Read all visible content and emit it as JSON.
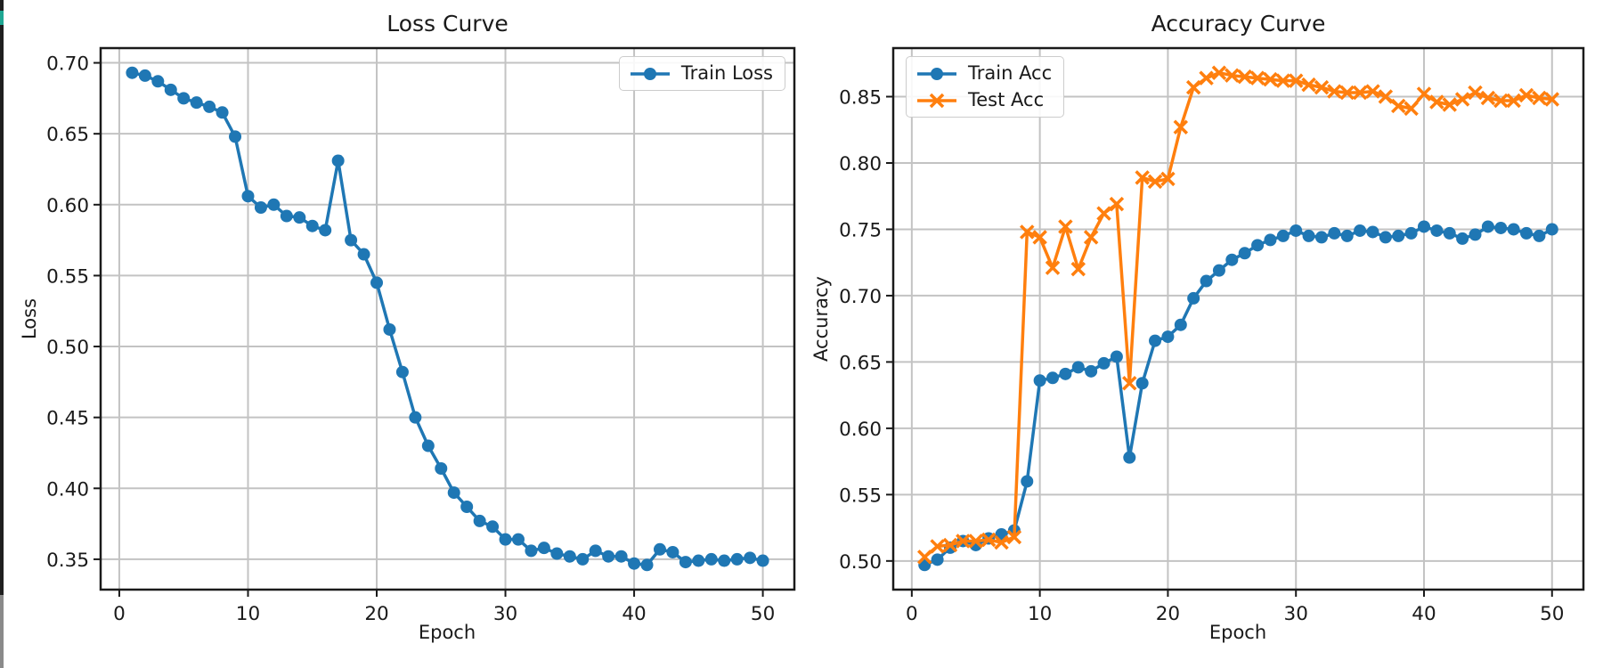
{
  "figure": {
    "background": "#ffffff",
    "spine_color": "#1a1a1a",
    "grid_color": "#c3c3c3",
    "tick_label_color": "#1a1a1a"
  },
  "chart_data": [
    {
      "id": "loss",
      "type": "line",
      "title": "Loss Curve",
      "xlabel": "Epoch",
      "ylabel": "Loss",
      "grid": true,
      "legend_position": "top-right",
      "xlim": [
        -1.45,
        52.45
      ],
      "ylim": [
        0.3286,
        0.7104
      ],
      "xticks": [
        0,
        10,
        20,
        30,
        40,
        50
      ],
      "xtick_labels": [
        "0",
        "10",
        "20",
        "30",
        "40",
        "50"
      ],
      "yticks": [
        0.35,
        0.4,
        0.45,
        0.5,
        0.55,
        0.6,
        0.65,
        0.7
      ],
      "ytick_labels": [
        "0.35",
        "0.40",
        "0.45",
        "0.50",
        "0.55",
        "0.60",
        "0.65",
        "0.70"
      ],
      "x": [
        1,
        2,
        3,
        4,
        5,
        6,
        7,
        8,
        9,
        10,
        11,
        12,
        13,
        14,
        15,
        16,
        17,
        18,
        19,
        20,
        21,
        22,
        23,
        24,
        25,
        26,
        27,
        28,
        29,
        30,
        31,
        32,
        33,
        34,
        35,
        36,
        37,
        38,
        39,
        40,
        41,
        42,
        43,
        44,
        45,
        46,
        47,
        48,
        49,
        50
      ],
      "series": [
        {
          "name": "Train Loss",
          "color": "#1f77b4",
          "marker": "circle",
          "values": [
            0.693,
            0.691,
            0.687,
            0.681,
            0.675,
            0.672,
            0.669,
            0.665,
            0.648,
            0.606,
            0.598,
            0.6,
            0.592,
            0.591,
            0.585,
            0.582,
            0.631,
            0.575,
            0.565,
            0.545,
            0.512,
            0.482,
            0.45,
            0.43,
            0.414,
            0.397,
            0.387,
            0.377,
            0.373,
            0.364,
            0.364,
            0.356,
            0.358,
            0.354,
            0.352,
            0.35,
            0.356,
            0.352,
            0.352,
            0.347,
            0.346,
            0.357,
            0.355,
            0.348,
            0.349,
            0.35,
            0.349,
            0.35,
            0.351,
            0.349
          ]
        }
      ]
    },
    {
      "id": "accuracy",
      "type": "line",
      "title": "Accuracy Curve",
      "xlabel": "Epoch",
      "ylabel": "Accuracy",
      "grid": true,
      "legend_position": "top-left",
      "xlim": [
        -1.45,
        52.45
      ],
      "ylim": [
        0.4784,
        0.8866
      ],
      "xticks": [
        0,
        10,
        20,
        30,
        40,
        50
      ],
      "xtick_labels": [
        "0",
        "10",
        "20",
        "30",
        "40",
        "50"
      ],
      "yticks": [
        0.5,
        0.55,
        0.6,
        0.65,
        0.7,
        0.75,
        0.8,
        0.85
      ],
      "ytick_labels": [
        "0.50",
        "0.55",
        "0.60",
        "0.65",
        "0.70",
        "0.75",
        "0.80",
        "0.85"
      ],
      "x": [
        1,
        2,
        3,
        4,
        5,
        6,
        7,
        8,
        9,
        10,
        11,
        12,
        13,
        14,
        15,
        16,
        17,
        18,
        19,
        20,
        21,
        22,
        23,
        24,
        25,
        26,
        27,
        28,
        29,
        30,
        31,
        32,
        33,
        34,
        35,
        36,
        37,
        38,
        39,
        40,
        41,
        42,
        43,
        44,
        45,
        46,
        47,
        48,
        49,
        50
      ],
      "series": [
        {
          "name": "Train Acc",
          "color": "#1f77b4",
          "marker": "circle",
          "values": [
            0.497,
            0.501,
            0.51,
            0.515,
            0.512,
            0.517,
            0.52,
            0.523,
            0.56,
            0.636,
            0.638,
            0.641,
            0.646,
            0.643,
            0.649,
            0.654,
            0.578,
            0.634,
            0.666,
            0.669,
            0.678,
            0.698,
            0.711,
            0.719,
            0.727,
            0.732,
            0.738,
            0.742,
            0.745,
            0.749,
            0.745,
            0.744,
            0.747,
            0.745,
            0.749,
            0.748,
            0.744,
            0.745,
            0.747,
            0.752,
            0.749,
            0.747,
            0.743,
            0.746,
            0.752,
            0.751,
            0.75,
            0.747,
            0.745,
            0.75
          ]
        },
        {
          "name": "Test Acc",
          "color": "#ff7f0e",
          "marker": "x",
          "values": [
            0.503,
            0.511,
            0.512,
            0.515,
            0.515,
            0.516,
            0.514,
            0.518,
            0.748,
            0.744,
            0.721,
            0.752,
            0.72,
            0.744,
            0.762,
            0.769,
            0.634,
            0.789,
            0.786,
            0.788,
            0.827,
            0.857,
            0.864,
            0.868,
            0.866,
            0.865,
            0.864,
            0.863,
            0.862,
            0.862,
            0.859,
            0.857,
            0.854,
            0.853,
            0.853,
            0.854,
            0.85,
            0.843,
            0.841,
            0.852,
            0.846,
            0.844,
            0.848,
            0.853,
            0.849,
            0.847,
            0.847,
            0.851,
            0.849,
            0.848
          ]
        }
      ]
    }
  ]
}
